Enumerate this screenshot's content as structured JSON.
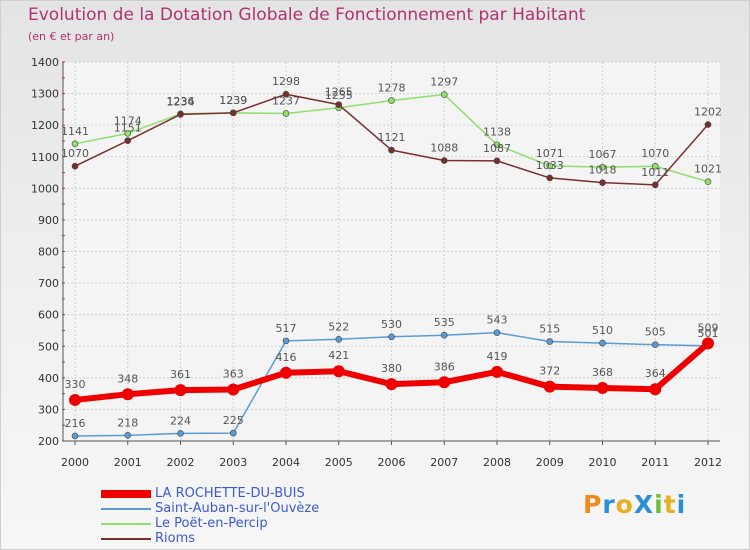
{
  "chart_data": {
    "type": "line",
    "title": "Evolution de la Dotation Globale de Fonctionnement par Habitant",
    "subtitle": "(en € et par an)",
    "xlabel": "",
    "ylabel": "",
    "ylim": [
      200,
      1400
    ],
    "y_ticks": [
      200,
      300,
      400,
      500,
      600,
      700,
      800,
      900,
      1000,
      1100,
      1200,
      1300,
      1400
    ],
    "categories": [
      "2000",
      "2001",
      "2002",
      "2003",
      "2004",
      "2005",
      "2006",
      "2007",
      "2008",
      "2009",
      "2010",
      "2011",
      "2012"
    ],
    "series": [
      {
        "name": "Saint-Auban-sur-l'Ouvèze",
        "color": "#5b9bd5",
        "values": [
          216,
          218,
          224,
          225,
          517,
          522,
          530,
          535,
          543,
          515,
          510,
          505,
          501
        ]
      },
      {
        "name": "Le Poët-en-Percip",
        "color": "#8ee06a",
        "values": [
          1141,
          1174,
          1236,
          1239,
          1237,
          1255,
          1278,
          1297,
          1138,
          1071,
          1067,
          1070,
          1021
        ]
      },
      {
        "name": "Rioms",
        "color": "#7a2f2f",
        "values": [
          1070,
          1151,
          1234,
          1239,
          1298,
          1265,
          1121,
          1088,
          1087,
          1033,
          1018,
          1011,
          1202
        ]
      },
      {
        "name": "LA ROCHETTE-DU-BUIS",
        "color": "#ee0000",
        "values": [
          330,
          348,
          361,
          363,
          416,
          421,
          380,
          386,
          419,
          372,
          368,
          364,
          509
        ]
      }
    ],
    "legend_position": "bottom-left"
  },
  "legend": [
    {
      "label": "LA ROCHETTE-DU-BUIS",
      "color": "#ee0000",
      "thick": true
    },
    {
      "label": "Saint-Auban-sur-l'Ouvèze",
      "color": "#5b9bd5",
      "thick": false
    },
    {
      "label": "Le Poët-en-Percip",
      "color": "#8ee06a",
      "thick": false
    },
    {
      "label": "Rioms",
      "color": "#7a2f2f",
      "thick": false
    }
  ],
  "logo": {
    "text": "ProXiti"
  }
}
